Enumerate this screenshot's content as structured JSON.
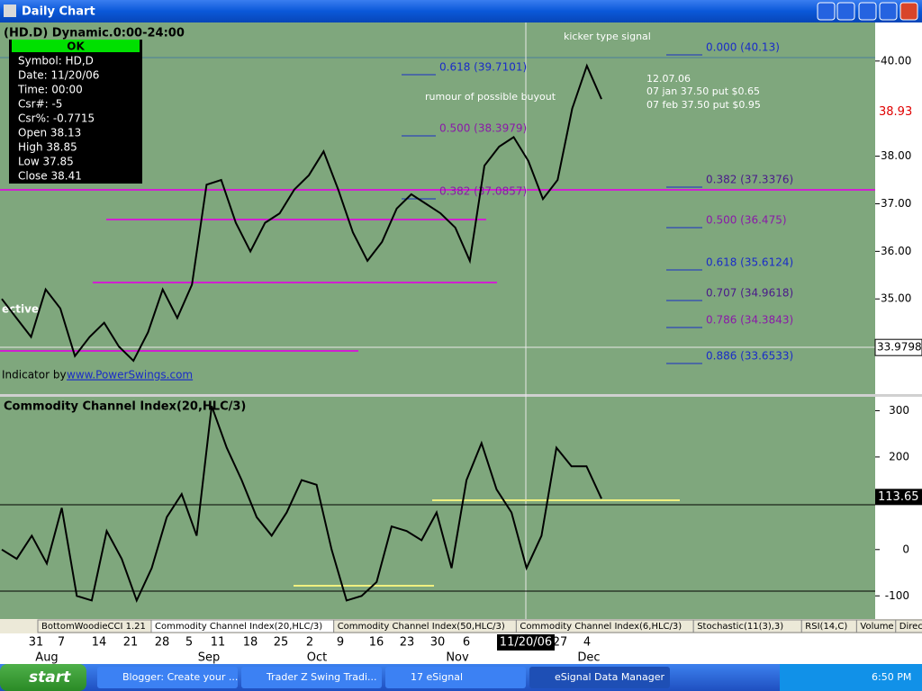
{
  "window": {
    "title": "Daily Chart",
    "header": "(HD.D) Dynamic.0:00-24:00"
  },
  "info_box": {
    "status": "OK",
    "rows": [
      "Symbol: HD,D",
      "Date: 11/20/06",
      "Time: 00:00",
      "Csr#: -5",
      "Csr%: -0.7715",
      "Open 38.13",
      "High 38.85",
      "Low 37.85",
      "Close 38.41"
    ]
  },
  "annotations": {
    "kicker": "kicker type signal",
    "rumour": "rumour of possible buyout",
    "note_date": "12.07.06",
    "note_jan": "07 jan 37.50 put $0.65",
    "note_feb": "07 feb 37.50 put $0.95",
    "cut_text": "ective",
    "indicator_by": "Indicator by",
    "site": "www.PowerSwings.com"
  },
  "fib_levels": {
    "left": [
      "0.618 (39.7101)",
      "0.500 (38.3979)",
      "0.382 (37.0857)"
    ],
    "right": [
      "0.000 (40.13)",
      "0.382 (37.3376)",
      "0.500 (36.475)",
      "0.618 (35.6124)",
      "0.707 (34.9618)",
      "0.786 (34.3843)",
      "0.886 (33.6533)"
    ]
  },
  "price_panel": {
    "ylim": [
      33.0,
      40.81
    ],
    "yticks": [
      {
        "value": 40,
        "label": "40.00"
      },
      {
        "value": 38,
        "label": "38.00"
      },
      {
        "value": 37,
        "label": "37.00"
      },
      {
        "value": 36,
        "label": "36.00"
      },
      {
        "value": 35,
        "label": "35.00"
      }
    ],
    "last_price": {
      "value": 38.93,
      "label": "38.93"
    },
    "cursor_price": {
      "value": 33.9798,
      "label": "33.9798"
    },
    "color": "#000000",
    "values": [
      35.0,
      34.6,
      34.2,
      35.2,
      34.8,
      33.8,
      34.2,
      34.5,
      34.0,
      33.7,
      34.3,
      35.2,
      34.6,
      35.3,
      37.4,
      37.5,
      36.6,
      36.0,
      36.6,
      36.8,
      37.3,
      37.6,
      38.1,
      37.3,
      36.4,
      35.8,
      36.2,
      36.9,
      37.2,
      37.0,
      36.8,
      36.5,
      35.8,
      37.8,
      38.2,
      38.4,
      37.9,
      37.1,
      37.5,
      39.0,
      39.9,
      39.2
    ]
  },
  "cci_panel": {
    "title": "Commodity Channel Index(20,HLC/3)",
    "ylim": [
      -150,
      330
    ],
    "yticks": [
      300,
      200,
      0,
      -100
    ],
    "last_value": {
      "value": 113.65,
      "label": "113.65"
    },
    "color": "#000000",
    "values": [
      0,
      -20,
      30,
      -30,
      90,
      -100,
      -110,
      40,
      -20,
      -110,
      -40,
      70,
      120,
      30,
      310,
      220,
      150,
      70,
      30,
      80,
      150,
      140,
      0,
      -110,
      -100,
      -70,
      50,
      40,
      20,
      80,
      -40,
      150,
      230,
      130,
      80,
      -40,
      30,
      220,
      180,
      180,
      110
    ]
  },
  "tabs": [
    "BottomWoodieCCI 1.21",
    "Commodity Channel Index(20,HLC/3)",
    "Commodity Channel Index(50,HLC/3)",
    "Commodity Channel Index(6,HLC/3)",
    "Stochastic(11(3),3)",
    "RSI(14,C)",
    "Volume",
    "Directional"
  ],
  "date_axis": {
    "days": [
      "31",
      "7",
      "14",
      "21",
      "28",
      "5",
      "11",
      "18",
      "25",
      "2",
      "9",
      "16",
      "23",
      "30",
      "6",
      "11/20/06",
      "27",
      "4"
    ],
    "months": [
      "Aug",
      "Sep",
      "Oct",
      "Nov",
      "Dec"
    ]
  },
  "taskbar": {
    "start": "start",
    "items": [
      "Blogger: Create your ...",
      "Trader Z Swing Tradi...",
      "17 eSignal",
      "eSignal Data Manager"
    ],
    "clock": "6:50 PM"
  }
}
